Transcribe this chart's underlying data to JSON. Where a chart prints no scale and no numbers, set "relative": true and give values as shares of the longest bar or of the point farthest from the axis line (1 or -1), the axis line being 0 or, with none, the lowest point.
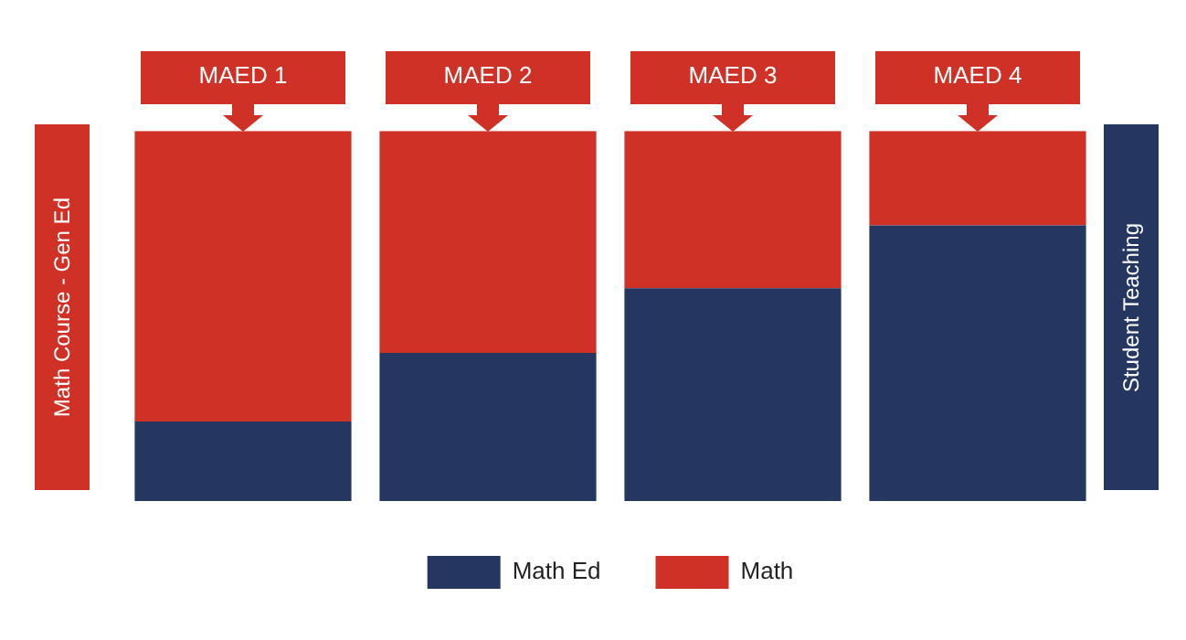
{
  "chart_data": {
    "type": "bar",
    "stacked": true,
    "relative": true,
    "categories": [
      "MAED 1",
      "MAED 2",
      "MAED 3",
      "MAED 4"
    ],
    "series": [
      {
        "name": "Math Ed",
        "color": "#253760",
        "values": [
          0.215,
          0.4,
          0.575,
          0.745
        ]
      },
      {
        "name": "Math",
        "color": "#d03126",
        "values": [
          0.785,
          0.6,
          0.425,
          0.255
        ]
      }
    ],
    "legend": "bottom",
    "grid": false,
    "annotations": [
      "Math Course - Gen Ed",
      "Student Teaching"
    ]
  }
}
